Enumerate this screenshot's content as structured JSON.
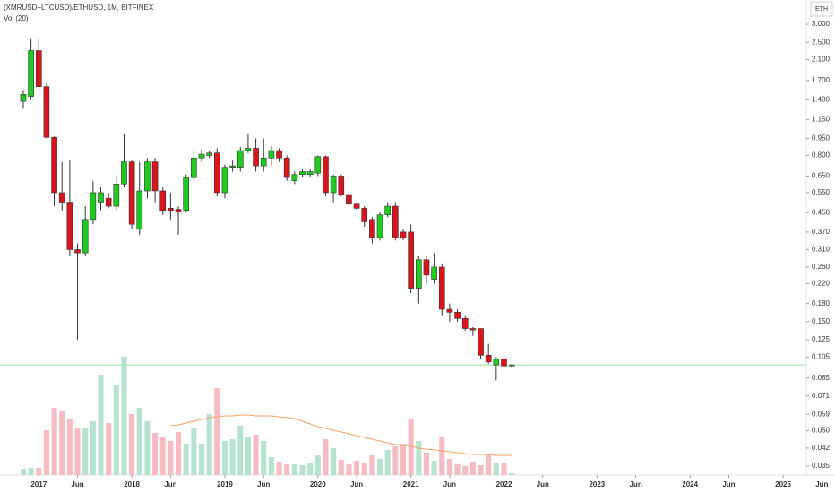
{
  "chart_data": {
    "type": "candlestick",
    "title": "(XMRUSD+LTCUSD)/ETHUSD, 1M, BITFINEX",
    "volume_label": "Vol (20)",
    "currency": "ETH",
    "log_scale": true,
    "up_color": "#1ecb1e",
    "down_color": "#d8151b",
    "volume_up_color": "#b5e3cf",
    "volume_down_color": "#f7bcc2",
    "volume_ma_color": "#f4a261",
    "price_line_color": "#9be39b",
    "x": [
      "2016-11",
      "2016-12",
      "2017-01",
      "2017-02",
      "2017-03",
      "2017-04",
      "2017-05",
      "2017-06",
      "2017-07",
      "2017-08",
      "2017-09",
      "2017-10",
      "2017-11",
      "2017-12",
      "2018-01",
      "2018-02",
      "2018-03",
      "2018-04",
      "2018-05",
      "2018-06",
      "2018-07",
      "2018-08",
      "2018-09",
      "2018-10",
      "2018-11",
      "2018-12",
      "2019-01",
      "2019-02",
      "2019-03",
      "2019-04",
      "2019-05",
      "2019-06",
      "2019-07",
      "2019-08",
      "2019-09",
      "2019-10",
      "2019-11",
      "2019-12",
      "2020-01",
      "2020-02",
      "2020-03",
      "2020-04",
      "2020-05",
      "2020-06",
      "2020-07",
      "2020-08",
      "2020-09",
      "2020-10",
      "2020-11",
      "2020-12",
      "2021-01",
      "2021-02",
      "2021-03",
      "2021-04",
      "2021-05",
      "2021-06",
      "2021-07",
      "2021-08",
      "2021-09",
      "2021-10",
      "2021-11",
      "2021-12",
      "2022-01",
      "2022-02"
    ],
    "open": [
      1.38,
      1.45,
      2.3,
      1.6,
      0.96,
      0.55,
      0.5,
      0.31,
      0.3,
      0.42,
      0.5,
      0.52,
      0.48,
      0.6,
      0.75,
      0.38,
      0.56,
      0.75,
      0.56,
      0.47,
      0.465,
      0.46,
      0.64,
      0.78,
      0.8,
      0.82,
      0.55,
      0.71,
      0.71,
      0.84,
      0.86,
      0.72,
      0.78,
      0.84,
      0.78,
      0.62,
      0.66,
      0.66,
      0.67,
      0.79,
      0.55,
      0.65,
      0.54,
      0.49,
      0.47,
      0.42,
      0.35,
      0.44,
      0.48,
      0.37,
      0.37,
      0.21,
      0.28,
      0.23,
      0.26,
      0.17,
      0.165,
      0.155,
      0.14,
      0.14,
      0.107,
      0.097,
      0.103,
      0.096
    ],
    "high": [
      1.55,
      2.6,
      2.6,
      1.65,
      0.97,
      0.75,
      0.76,
      0.33,
      0.48,
      0.62,
      0.58,
      0.55,
      0.65,
      1.0,
      0.76,
      0.75,
      0.78,
      0.78,
      0.58,
      0.55,
      0.48,
      0.66,
      0.86,
      0.85,
      0.84,
      0.86,
      0.73,
      0.76,
      0.87,
      1.0,
      0.95,
      0.95,
      0.88,
      0.86,
      0.8,
      0.68,
      0.7,
      0.7,
      0.8,
      0.8,
      0.66,
      0.66,
      0.55,
      0.5,
      0.48,
      0.43,
      0.45,
      0.5,
      0.5,
      0.38,
      0.4,
      0.29,
      0.29,
      0.3,
      0.27,
      0.18,
      0.17,
      0.16,
      0.142,
      0.14,
      0.12,
      0.105,
      0.115,
      0.098
    ],
    "low": [
      1.28,
      1.4,
      1.55,
      0.95,
      0.48,
      0.46,
      0.29,
      0.125,
      0.29,
      0.4,
      0.46,
      0.47,
      0.46,
      0.58,
      0.38,
      0.36,
      0.52,
      0.5,
      0.44,
      0.42,
      0.36,
      0.45,
      0.62,
      0.75,
      0.78,
      0.53,
      0.52,
      0.68,
      0.68,
      0.82,
      0.68,
      0.68,
      0.72,
      0.75,
      0.62,
      0.6,
      0.64,
      0.64,
      0.65,
      0.53,
      0.5,
      0.53,
      0.47,
      0.46,
      0.39,
      0.33,
      0.34,
      0.43,
      0.34,
      0.34,
      0.2,
      0.18,
      0.22,
      0.22,
      0.16,
      0.15,
      0.15,
      0.137,
      0.13,
      0.103,
      0.098,
      0.083,
      0.095,
      0.095
    ],
    "close": [
      1.48,
      2.3,
      1.6,
      0.96,
      0.55,
      0.5,
      0.31,
      0.3,
      0.42,
      0.55,
      0.55,
      0.48,
      0.6,
      0.75,
      0.4,
      0.56,
      0.75,
      0.56,
      0.46,
      0.46,
      0.455,
      0.64,
      0.78,
      0.81,
      0.82,
      0.55,
      0.71,
      0.72,
      0.84,
      0.86,
      0.72,
      0.78,
      0.84,
      0.78,
      0.64,
      0.66,
      0.68,
      0.68,
      0.79,
      0.55,
      0.65,
      0.54,
      0.49,
      0.47,
      0.41,
      0.35,
      0.44,
      0.48,
      0.35,
      0.35,
      0.21,
      0.28,
      0.24,
      0.26,
      0.17,
      0.165,
      0.155,
      0.14,
      0.138,
      0.107,
      0.1,
      0.103,
      0.096,
      0.097
    ],
    "volume": [
      7,
      8,
      8,
      50,
      75,
      72,
      62,
      53,
      52,
      60,
      112,
      58,
      100,
      132,
      68,
      75,
      60,
      47,
      42,
      38,
      48,
      35,
      52,
      35,
      68,
      97,
      38,
      40,
      55,
      42,
      45,
      38,
      20,
      15,
      12,
      12,
      11,
      14,
      22,
      40,
      30,
      17,
      12,
      16,
      13,
      22,
      18,
      28,
      32,
      35,
      63,
      38,
      25,
      16,
      43,
      18,
      12,
      10,
      15,
      11,
      23,
      14,
      14,
      2
    ],
    "volume_ma": [
      null,
      null,
      null,
      null,
      null,
      null,
      null,
      null,
      null,
      null,
      null,
      null,
      null,
      null,
      null,
      null,
      null,
      null,
      null,
      55,
      56,
      58,
      60,
      62,
      64,
      65,
      66,
      66,
      67,
      67,
      66,
      66,
      66,
      65,
      64,
      63,
      60,
      57,
      54,
      52,
      50,
      48,
      46,
      44,
      42,
      40,
      38,
      36,
      34,
      33,
      32,
      30,
      29,
      28,
      27,
      26,
      25,
      24,
      23,
      23,
      23,
      22,
      22,
      22
    ],
    "vlim": [
      0,
      140
    ],
    "xlim": [
      "2016-08",
      "2025-04"
    ],
    "xticks": [
      {
        "value": "2017-01",
        "label": "2017"
      },
      {
        "value": "2017-06",
        "label": "Jun"
      },
      {
        "value": "2018-01",
        "label": "2018"
      },
      {
        "value": "2018-06",
        "label": "Jun"
      },
      {
        "value": "2019-01",
        "label": "2019"
      },
      {
        "value": "2019-06",
        "label": "Jun"
      },
      {
        "value": "2020-01",
        "label": "2020"
      },
      {
        "value": "2020-06",
        "label": "Jun"
      },
      {
        "value": "2021-01",
        "label": "2021"
      },
      {
        "value": "2021-06",
        "label": "Jun"
      },
      {
        "value": "2022-01",
        "label": "2022"
      },
      {
        "value": "2022-06",
        "label": "Jun"
      },
      {
        "value": "2023-01",
        "label": "2023"
      },
      {
        "value": "2023-06",
        "label": "Jun"
      },
      {
        "value": "2024-01",
        "label": "2024"
      },
      {
        "value": "2024-06",
        "label": "Jun"
      },
      {
        "value": "2025-01",
        "label": "2025"
      },
      {
        "value": "2025-06",
        "label": "Jun"
      }
    ],
    "ylim": [
      0.032,
      3.83
    ],
    "yticks": [
      {
        "value": 3,
        "label": "3.000"
      },
      {
        "value": 2.5,
        "label": "2.500"
      },
      {
        "value": 2.1,
        "label": "2.100"
      },
      {
        "value": 1.7,
        "label": "1.700"
      },
      {
        "value": 1.4,
        "label": "1.400"
      },
      {
        "value": 1.15,
        "label": "1.150"
      },
      {
        "value": 0.95,
        "label": "0.950"
      },
      {
        "value": 0.8,
        "label": "0.800"
      },
      {
        "value": 0.65,
        "label": "0.650"
      },
      {
        "value": 0.55,
        "label": "0.550"
      },
      {
        "value": 0.45,
        "label": "0.450"
      },
      {
        "value": 0.37,
        "label": "0.370"
      },
      {
        "value": 0.31,
        "label": "0.310"
      },
      {
        "value": 0.26,
        "label": "0.260"
      },
      {
        "value": 0.22,
        "label": "0.220"
      },
      {
        "value": 0.18,
        "label": "0.180"
      },
      {
        "value": 0.15,
        "label": "0.150"
      },
      {
        "value": 0.125,
        "label": "0.125"
      },
      {
        "value": 0.105,
        "label": "0.105"
      },
      {
        "value": 0.085,
        "label": "0.085"
      },
      {
        "value": 0.071,
        "label": "0.071"
      },
      {
        "value": 0.059,
        "label": "0.059"
      },
      {
        "value": 0.05,
        "label": "0.050"
      },
      {
        "value": 0.042,
        "label": "0.042"
      },
      {
        "value": 0.035,
        "label": "0.035"
      }
    ]
  }
}
